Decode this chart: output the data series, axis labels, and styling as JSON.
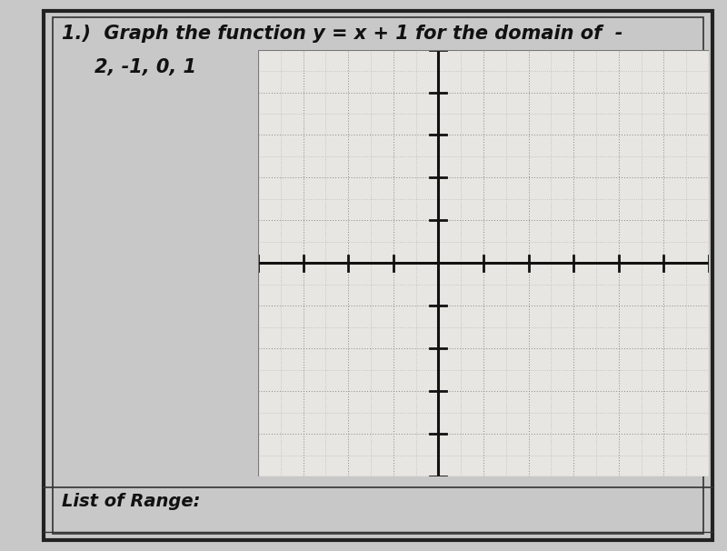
{
  "title_line1": "1.)  Graph the function y = x + 1 for the domain of  -",
  "title_line2": "      2, -1, 0, 1",
  "bottom_text": "List of Range:",
  "bg_color": "#c8c8c8",
  "paper_color": "#e8e6e2",
  "grid_bg_color": "#e8e6e2",
  "grid_color": "#888888",
  "axis_color": "#111111",
  "border_color": "#222222",
  "text_color": "#111111",
  "xlim": [
    -4,
    6
  ],
  "ylim": [
    -5,
    5
  ],
  "grid_xticks": [
    -4,
    -3,
    -2,
    -1,
    0,
    1,
    2,
    3,
    4,
    5,
    6
  ],
  "grid_yticks": [
    -5,
    -4,
    -3,
    -2,
    -1,
    0,
    1,
    2,
    3,
    4,
    5
  ],
  "font_size_title": 15,
  "font_size_bottom": 14
}
